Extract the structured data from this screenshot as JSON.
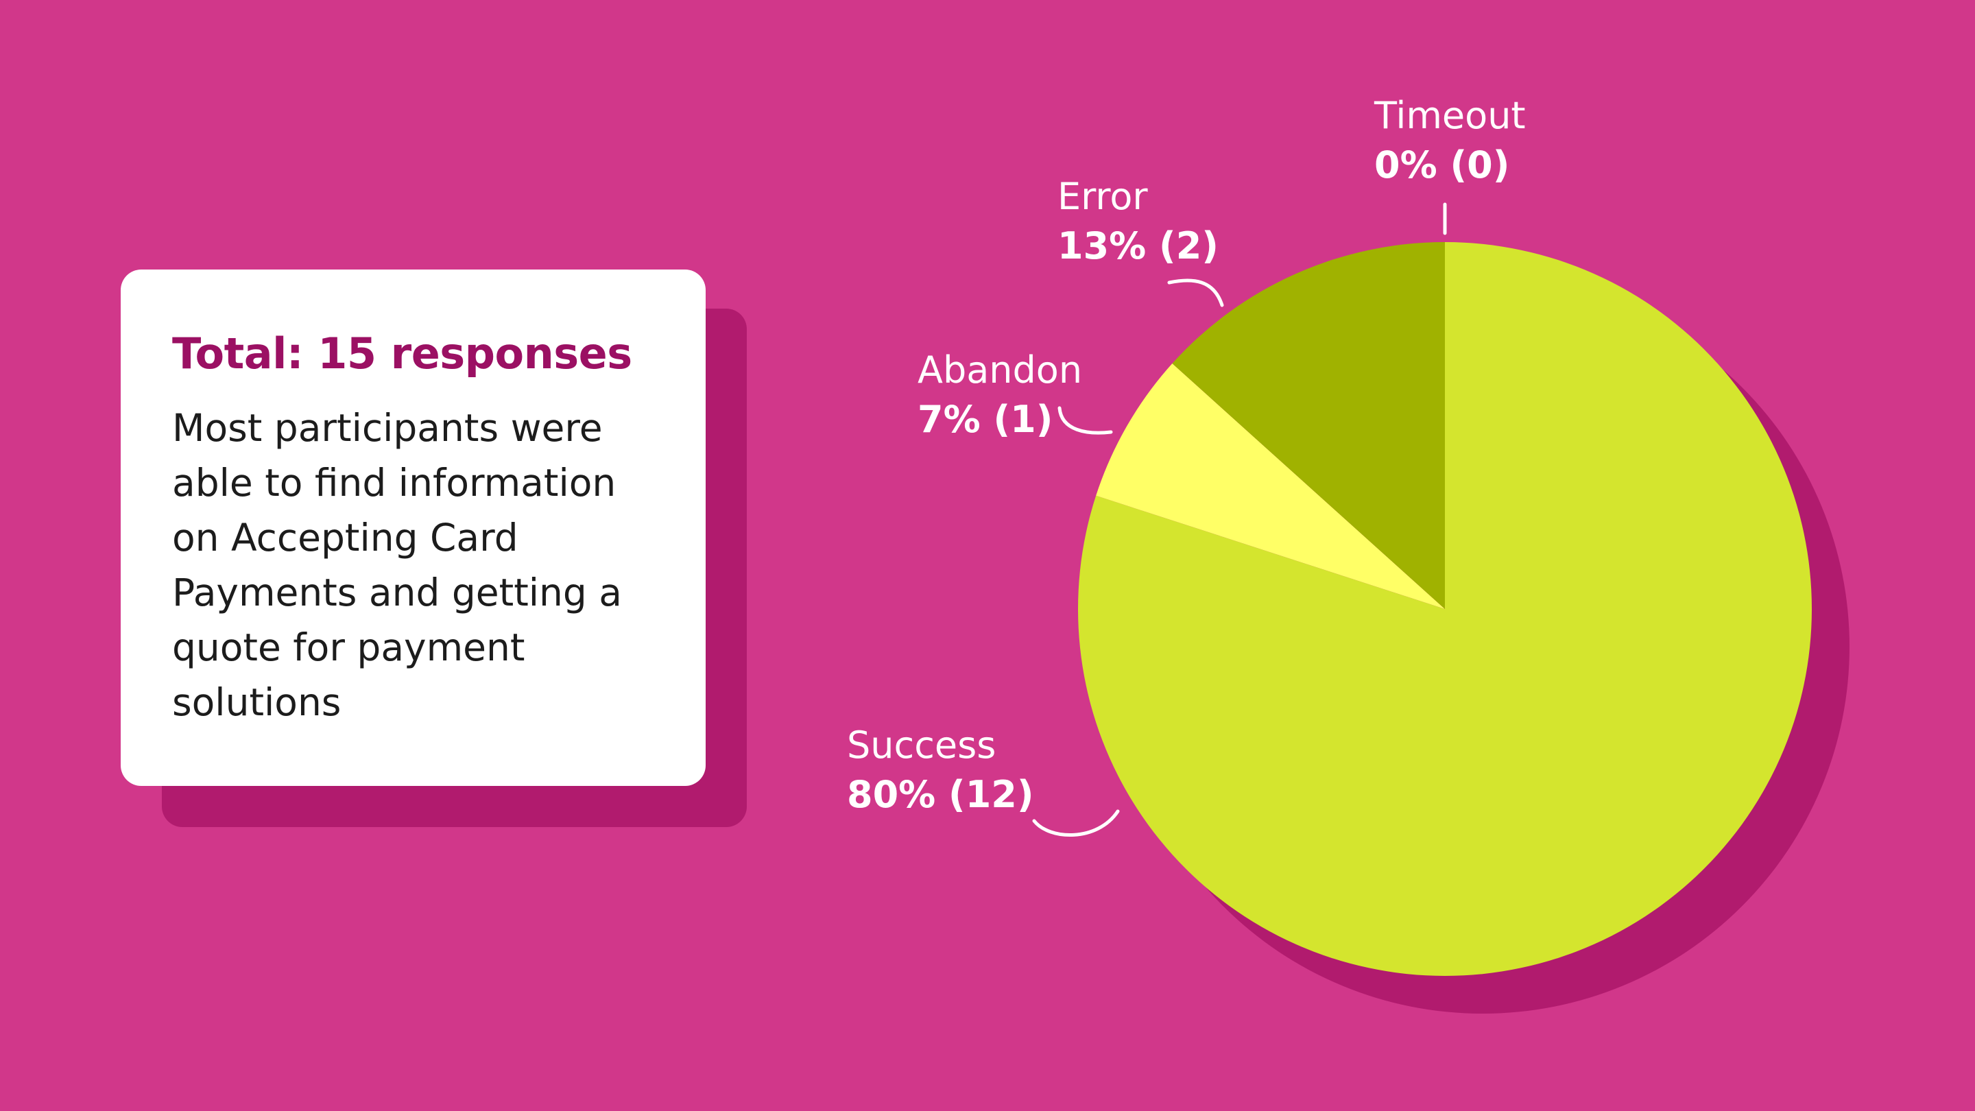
{
  "summary": {
    "title": "Total: 15 responses",
    "text": "Most participants were able to find information on Accepting Card Payments and getting a quote for payment solutions"
  },
  "chart_data": {
    "type": "pie",
    "slices": [
      {
        "name": "Success",
        "percent": 80,
        "count": 12,
        "value_label": "80% (12)",
        "color": "#d4e52e"
      },
      {
        "name": "Abandon",
        "percent": 7,
        "count": 1,
        "value_label": "7% (1)",
        "color": "#ffff66"
      },
      {
        "name": "Error",
        "percent": 13,
        "count": 2,
        "value_label": "13% (2)",
        "color": "#a0b200"
      },
      {
        "name": "Timeout",
        "percent": 0,
        "count": 0,
        "value_label": "0% (0)",
        "color": "#ffffff"
      }
    ]
  },
  "colors": {
    "background": "#d1378a",
    "shadow": "#b11b6e",
    "title": "#9b1063",
    "card": "#ffffff"
  }
}
